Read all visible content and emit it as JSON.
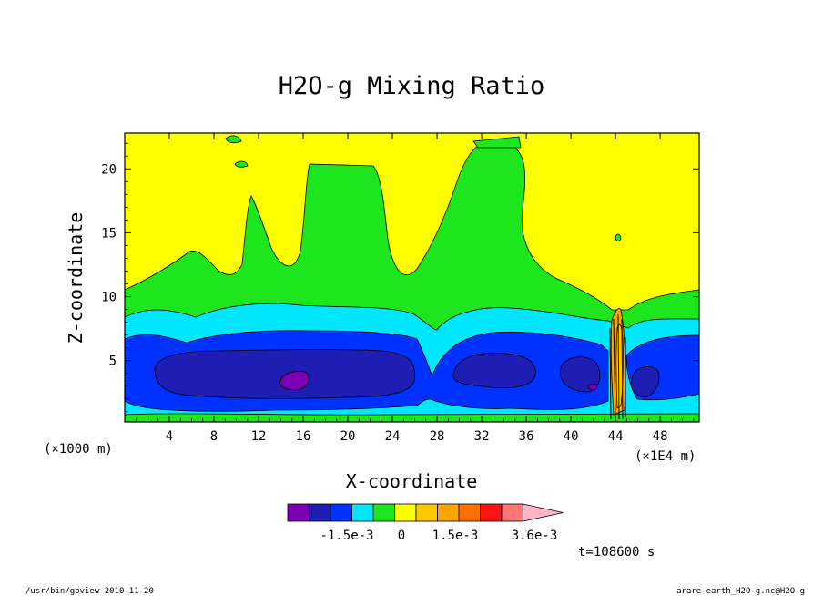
{
  "chart_data": {
    "type": "contour",
    "title": "H2O-g Mixing Ratio",
    "xlabel": "X-coordinate",
    "ylabel": "Z-coordinate",
    "x_unit": "(×1000 m)",
    "x_unit_right": "(×1E4 m)",
    "xlim": [
      0,
      51.5
    ],
    "ylim": [
      0.2,
      22.8
    ],
    "x_ticks": [
      4,
      8,
      12,
      16,
      20,
      24,
      28,
      32,
      36,
      40,
      44,
      48
    ],
    "y_ticks": [
      5,
      10,
      15,
      20
    ],
    "colorbar": {
      "colors": [
        "#7b00b4",
        "#1e1eb4",
        "#0032ff",
        "#00e6ff",
        "#1ee61e",
        "#ffff00",
        "#ffc800",
        "#ffa500",
        "#ff6e00",
        "#ff1414",
        "#ff7878",
        "#ffb4c8"
      ],
      "labels": [
        "-1.5e-3",
        "0",
        "1.5e-3",
        "3.6e-3"
      ]
    },
    "time_label": "t=108600 s"
  },
  "footer": {
    "left": "/usr/bin/gpview  2010-11-20",
    "right": "arare-earth_H2O-g.nc@H2O-g"
  }
}
